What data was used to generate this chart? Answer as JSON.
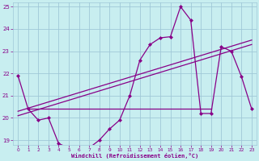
{
  "xlabel": "Windchill (Refroidissement éolien,°C)",
  "background_color": "#c8eef0",
  "grid_color": "#a0c8d8",
  "line_color": "#880088",
  "xlim": [
    -0.5,
    23.5
  ],
  "ylim": [
    18.8,
    25.2
  ],
  "yticks": [
    19,
    20,
    21,
    22,
    23,
    24,
    25
  ],
  "xticks": [
    0,
    1,
    2,
    3,
    4,
    5,
    6,
    7,
    8,
    9,
    10,
    11,
    12,
    13,
    14,
    15,
    16,
    17,
    18,
    19,
    20,
    21,
    22,
    23
  ],
  "main_x": [
    0,
    1,
    2,
    3,
    4,
    5,
    6,
    7,
    8,
    9,
    10,
    11,
    12,
    13,
    14,
    15,
    16,
    17,
    18,
    19,
    20,
    21,
    22,
    23
  ],
  "main_y": [
    21.9,
    20.4,
    19.9,
    20.0,
    18.85,
    18.65,
    18.65,
    18.65,
    19.0,
    19.5,
    19.9,
    21.0,
    22.6,
    23.3,
    23.6,
    23.65,
    25.0,
    24.4,
    20.2,
    20.2,
    23.2,
    23.0,
    21.85,
    20.4
  ],
  "reg_line1": [
    [
      0,
      23
    ],
    [
      20.3,
      23.5
    ]
  ],
  "reg_line2": [
    [
      0,
      23
    ],
    [
      20.1,
      23.3
    ]
  ],
  "horiz_line": [
    [
      1,
      19
    ],
    [
      20.4,
      20.4
    ]
  ]
}
